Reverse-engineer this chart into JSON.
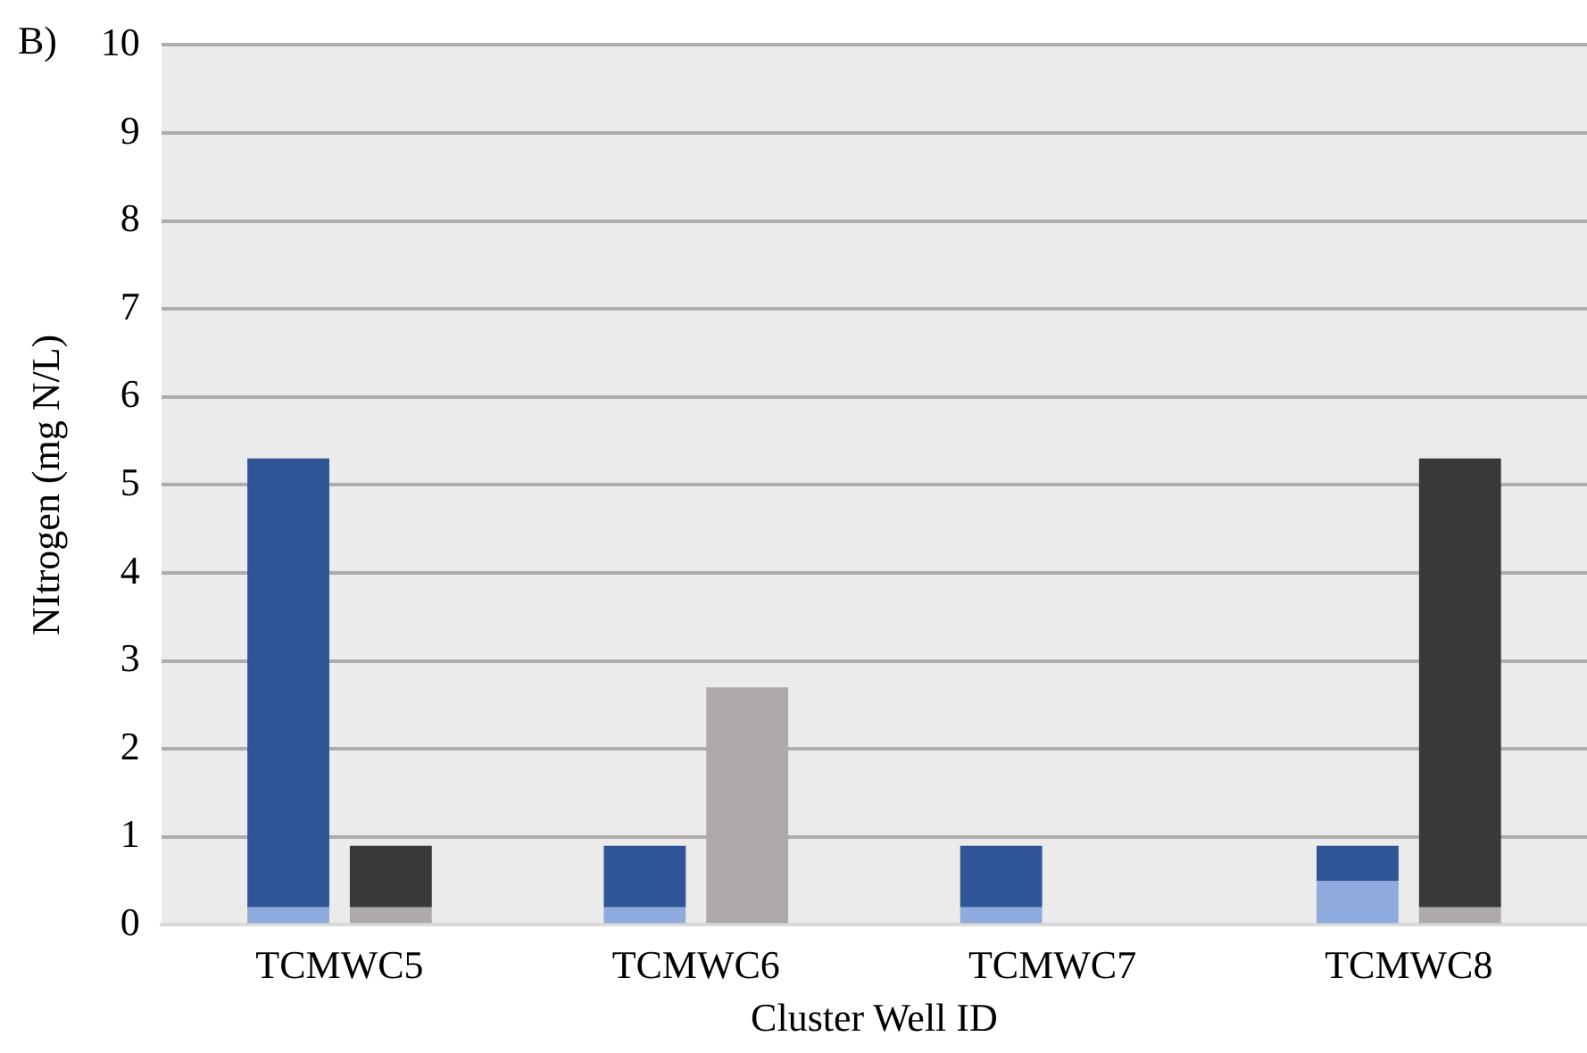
{
  "chart_data": {
    "type": "bar",
    "xlabel": "Cluster Well ID",
    "ylabel": "NItrogen (mg N/L)",
    "annotations": [
      "B)"
    ],
    "categories": [
      "TCMWC5",
      "TCMWC6",
      "TCMWC7",
      "TCMWC8"
    ],
    "series": [
      {
        "color": "#8faadc",
        "values": [
          0.2,
          0.2,
          0.2,
          0.5
        ],
        "base": [
          0,
          0,
          0,
          0
        ]
      },
      {
        "color": "#2f5597",
        "values": [
          5.1,
          0.7,
          0.7,
          0.4
        ],
        "base": [
          0.2,
          0.2,
          0.2,
          0.5
        ]
      },
      {
        "color": "#aeaaaa",
        "values": [
          0.2,
          2.7,
          null,
          0.2
        ],
        "base": [
          0,
          0,
          null,
          0
        ]
      },
      {
        "color": "#3a3838",
        "values": [
          0.7,
          null,
          null,
          5.1
        ],
        "base": [
          0.2,
          null,
          null,
          0.2
        ]
      }
    ],
    "ylim": [
      0,
      10
    ],
    "yticks": [
      0,
      1,
      2,
      3,
      4,
      5,
      6,
      7,
      8,
      9,
      10
    ],
    "grid": "y",
    "legend": false
  }
}
